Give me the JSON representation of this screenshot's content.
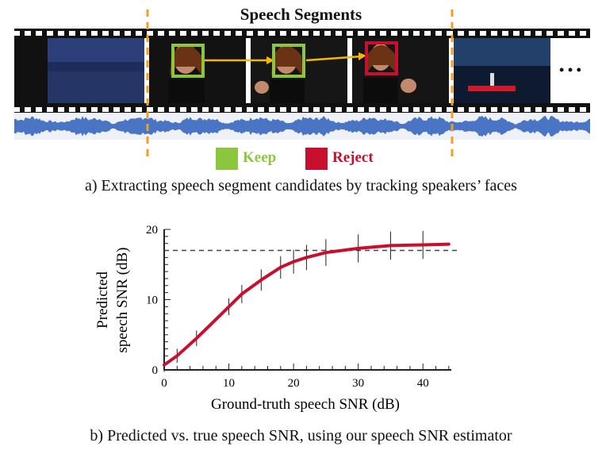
{
  "figure_title": "Speech Segments",
  "frames": {
    "ellipsis": "• • •",
    "face_boxes": [
      {
        "status": "keep"
      },
      {
        "status": "keep"
      },
      {
        "status": "reject"
      }
    ]
  },
  "legend": {
    "keep": {
      "label": "Keep",
      "color": "#8cc63f"
    },
    "reject": {
      "label": "Reject",
      "color": "#c8102e"
    }
  },
  "caption_a": "a) Extracting speech segment candidates by tracking speakers’ faces",
  "caption_b": "b) Predicted vs. true speech SNR, using our speech SNR estimator",
  "colors": {
    "arrow": "#f5b800",
    "divider": "#f0a020",
    "waveform": "#4a74c4",
    "curve": "#c8102e"
  },
  "chart_data": {
    "type": "line",
    "xlabel": "Ground-truth speech SNR (dB)",
    "ylabel_line1": "Predicted",
    "ylabel_line2": "speech SNR (dB)",
    "xlim": [
      0,
      45
    ],
    "ylim": [
      0,
      20
    ],
    "xticks": [
      0,
      10,
      20,
      30,
      40
    ],
    "yticks": [
      0,
      10,
      20
    ],
    "reference_y": 17,
    "series": [
      {
        "x": [
          0,
          2,
          5,
          10,
          12,
          15,
          18,
          20,
          22,
          25,
          30,
          35,
          40,
          44
        ],
        "y": [
          0.7,
          2.0,
          4.5,
          9.0,
          10.8,
          12.8,
          14.6,
          15.4,
          16.0,
          16.7,
          17.3,
          17.7,
          17.8,
          17.9
        ],
        "err": [
          1.0,
          1.0,
          1.1,
          1.2,
          1.3,
          1.5,
          1.6,
          1.7,
          1.8,
          1.9,
          2.0,
          2.0,
          2.0,
          0.0
        ]
      }
    ]
  }
}
